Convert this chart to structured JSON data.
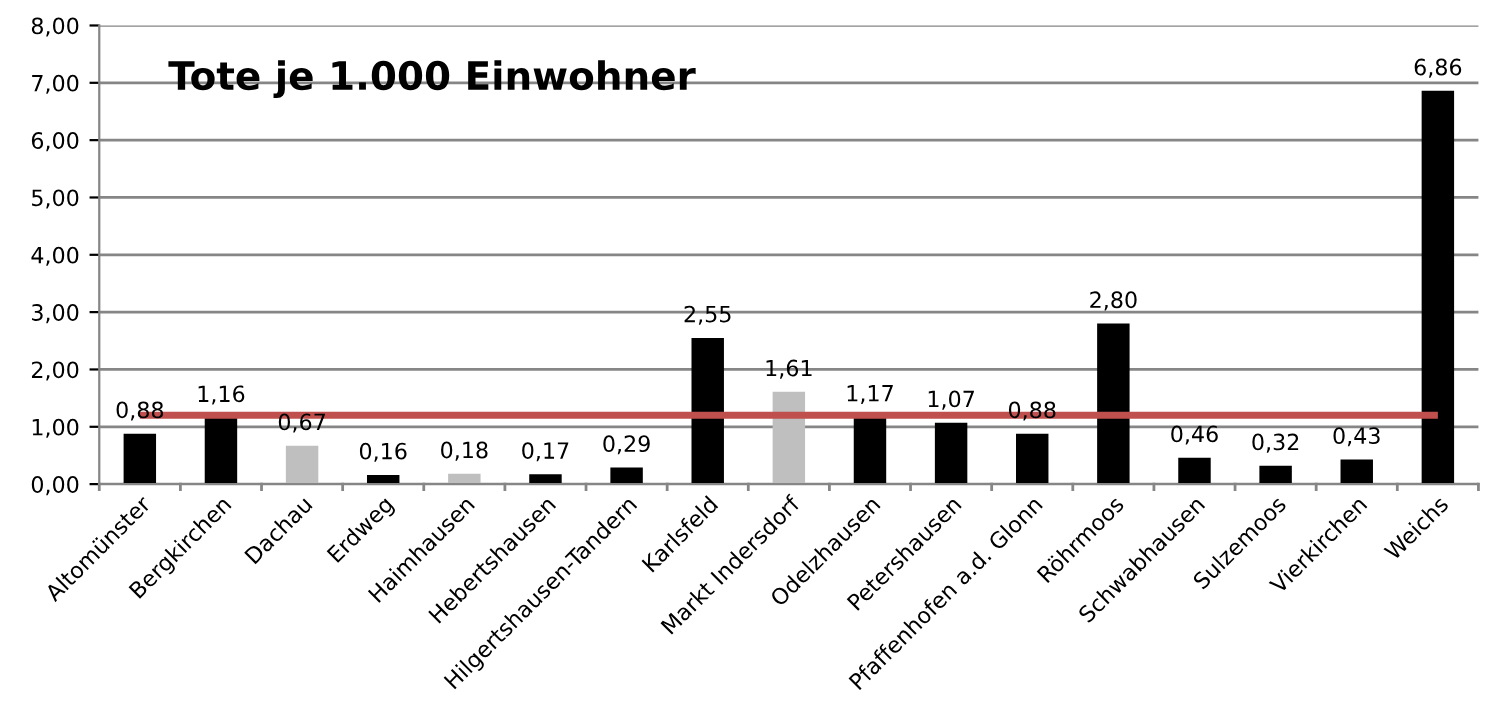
{
  "chart_data": {
    "type": "bar",
    "title": "Tote je 1.000 Einwohner",
    "categories": [
      "Altomünster",
      "Bergkirchen",
      "Dachau",
      "Erdweg",
      "Haimhausen",
      "Hebertshausen",
      "Hilgertshausen-Tandern",
      "Karlsfeld",
      "Markt Indersdorf",
      "Odelzhausen",
      "Petershausen",
      "Pfaffenhofen a.d. Glonn",
      "Röhrmoos",
      "Schwabhausen",
      "Sulzemoos",
      "Vierkirchen",
      "Weichs"
    ],
    "values": [
      0.88,
      1.16,
      0.67,
      0.16,
      0.18,
      0.17,
      0.29,
      2.55,
      1.61,
      1.17,
      1.07,
      0.88,
      2.8,
      0.46,
      0.32,
      0.43,
      6.86
    ],
    "colors": [
      "#000000",
      "#000000",
      "#bfbfbf",
      "#000000",
      "#bfbfbf",
      "#000000",
      "#000000",
      "#000000",
      "#bfbfbf",
      "#000000",
      "#000000",
      "#000000",
      "#000000",
      "#000000",
      "#000000",
      "#000000",
      "#000000"
    ],
    "value_labels": [
      "0,88",
      "1,16",
      "0,67",
      "0,16",
      "0,18",
      "0,17",
      "0,29",
      "2,55",
      "1,61",
      "1,17",
      "1,07",
      "0,88",
      "2,80",
      "0,46",
      "0,32",
      "0,43",
      "6,86"
    ],
    "ylim": [
      0,
      8
    ],
    "yticks": [
      {
        "value": 0,
        "label": "0,00"
      },
      {
        "value": 1,
        "label": "1,00"
      },
      {
        "value": 2,
        "label": "2,00"
      },
      {
        "value": 3,
        "label": "3,00"
      },
      {
        "value": 4,
        "label": "4,00"
      },
      {
        "value": 5,
        "label": "5,00"
      },
      {
        "value": 6,
        "label": "6,00"
      },
      {
        "value": 7,
        "label": "7,00"
      },
      {
        "value": 8,
        "label": "8,00"
      }
    ],
    "ref_lines": [
      {
        "axis": "y",
        "value": 1.2,
        "color": "#c0504d",
        "line_style": "solid"
      }
    ],
    "grid": "y",
    "legend": false
  }
}
